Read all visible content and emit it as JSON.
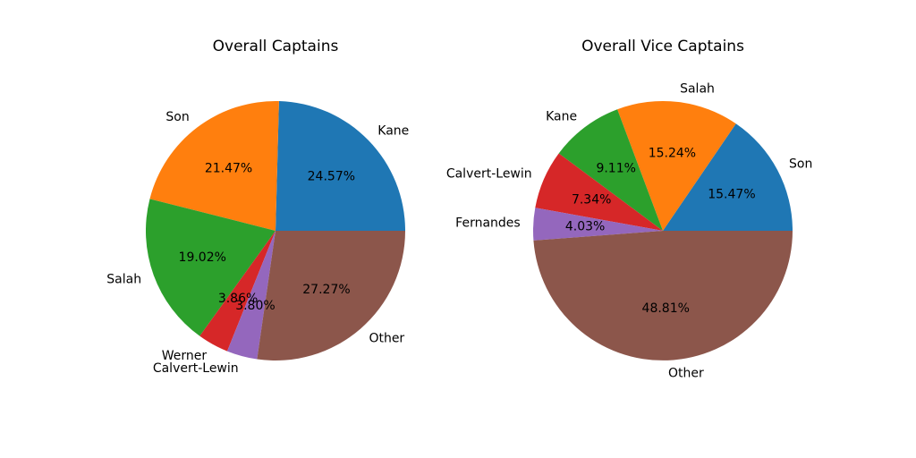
{
  "chart_data": [
    {
      "type": "pie",
      "title": "Overall Captains",
      "categories": [
        "Kane",
        "Son",
        "Salah",
        "Werner",
        "Calvert-Lewin",
        "Other"
      ],
      "values": [
        24.57,
        21.47,
        19.02,
        3.86,
        3.8,
        27.27
      ],
      "percent_labels": [
        "24.57%",
        "21.47%",
        "19.02%",
        "3.86%",
        "3.80%",
        "27.27%"
      ],
      "colors": [
        "#1f77b4",
        "#ff7f0e",
        "#2ca02c",
        "#d62728",
        "#9467bd",
        "#8c564b"
      ],
      "start_angle": 0,
      "direction": "counterclockwise"
    },
    {
      "type": "pie",
      "title": "Overall Vice Captains",
      "categories": [
        "Son",
        "Salah",
        "Kane",
        "Calvert-Lewin",
        "Fernandes",
        "Other"
      ],
      "values": [
        15.47,
        15.24,
        9.11,
        7.34,
        4.03,
        48.81
      ],
      "percent_labels": [
        "15.47%",
        "15.24%",
        "9.11%",
        "7.34%",
        "4.03%",
        "48.81%"
      ],
      "colors": [
        "#1f77b4",
        "#ff7f0e",
        "#2ca02c",
        "#d62728",
        "#9467bd",
        "#8c564b"
      ],
      "start_angle": 0,
      "direction": "counterclockwise"
    }
  ]
}
